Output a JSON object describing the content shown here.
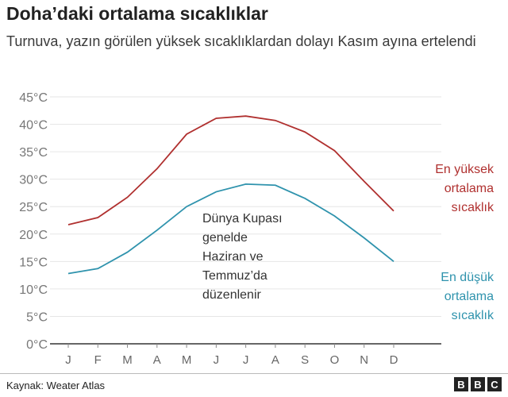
{
  "title": "Doha’daki ortalama sıcaklıklar",
  "subtitle": "Turnuva, yazın görülen yüksek sıcaklıklardan dolayı Kasım ayına ertelendi",
  "source": "Kaynak: Weater Atlas",
  "logo": [
    "B",
    "B",
    "C"
  ],
  "chart_data": {
    "type": "line",
    "categories": [
      "J",
      "F",
      "M",
      "A",
      "M",
      "J",
      "J",
      "A",
      "S",
      "O",
      "N",
      "D"
    ],
    "ylim": [
      0,
      45
    ],
    "yticks": [
      0,
      5,
      10,
      15,
      20,
      25,
      30,
      35,
      40,
      45
    ],
    "ytick_labels": [
      "0°C",
      "5°C",
      "10°C",
      "15°C",
      "20°C",
      "25°C",
      "30°C",
      "35°C",
      "40°C",
      "45°C"
    ],
    "grid": true,
    "series": [
      {
        "name": "En yüksek ortalama sıcaklık",
        "label_lines": [
          "En yüksek",
          "ortalama",
          "sıcaklık"
        ],
        "color": "#b0302f",
        "values": [
          21.7,
          23.0,
          26.7,
          31.9,
          38.2,
          41.1,
          41.5,
          40.7,
          38.6,
          35.2,
          29.6,
          24.2
        ]
      },
      {
        "name": "En düşük ortalama sıcaklık",
        "label_lines": [
          "En düşük",
          "ortalama",
          "sıcaklık"
        ],
        "color": "#2f93ad",
        "values": [
          12.8,
          13.7,
          16.7,
          20.7,
          25.0,
          27.7,
          29.1,
          28.9,
          26.5,
          23.3,
          19.3,
          15.0
        ]
      }
    ],
    "annotation": [
      "Dünya Kupası",
      "genelde",
      "Haziran ve",
      "Temmuz’da",
      "düzenlenir"
    ]
  }
}
